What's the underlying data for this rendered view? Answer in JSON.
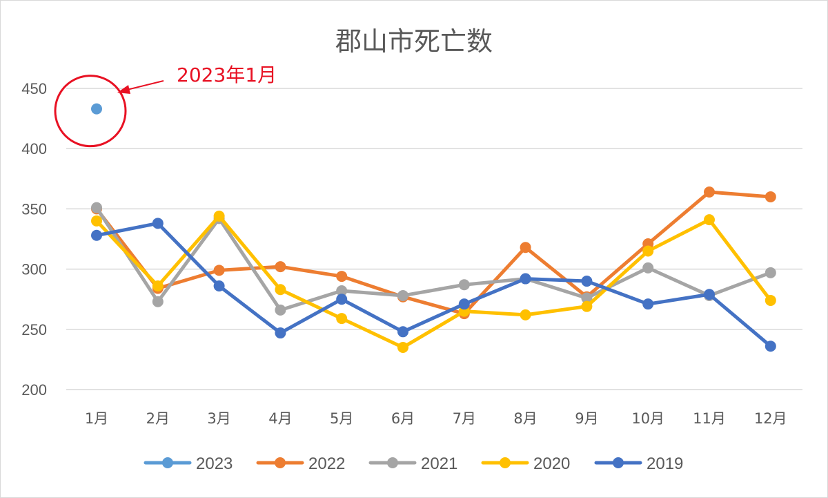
{
  "chart_data": {
    "type": "line",
    "title": "郡山市死亡数",
    "categories": [
      "1月",
      "2月",
      "3月",
      "4月",
      "5月",
      "6月",
      "7月",
      "8月",
      "9月",
      "10月",
      "11月",
      "12月"
    ],
    "ylim": [
      200,
      450
    ],
    "yticks": [
      200,
      250,
      300,
      350,
      400,
      450
    ],
    "grid": true,
    "legend_position": "bottom",
    "series": [
      {
        "name": "2023",
        "color": "#5B9BD5",
        "values": [
          433,
          null,
          null,
          null,
          null,
          null,
          null,
          null,
          null,
          null,
          null,
          null
        ]
      },
      {
        "name": "2022",
        "color": "#ED7D31",
        "values": [
          350,
          284,
          299,
          302,
          294,
          277,
          263,
          318,
          277,
          321,
          364,
          360
        ]
      },
      {
        "name": "2021",
        "color": "#A5A5A5",
        "values": [
          351,
          273,
          342,
          266,
          282,
          278,
          287,
          292,
          276,
          301,
          278,
          297
        ]
      },
      {
        "name": "2020",
        "color": "#FFC000",
        "values": [
          340,
          286,
          344,
          283,
          259,
          235,
          265,
          262,
          269,
          315,
          341,
          274
        ]
      },
      {
        "name": "2019",
        "color": "#4472C4",
        "values": [
          328,
          338,
          286,
          247,
          275,
          248,
          271,
          292,
          290,
          271,
          279,
          236
        ]
      }
    ],
    "annotation": {
      "text": "2023年1月",
      "color": "#E81123"
    }
  }
}
